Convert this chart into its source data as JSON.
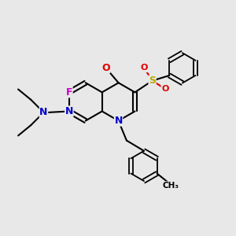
{
  "bg_color": "#e8e8e8",
  "bond_color": "#000000",
  "bond_width": 1.5,
  "atom_colors": {
    "N": "#0000cc",
    "O": "#dd0000",
    "F": "#cc00cc",
    "S": "#bbaa00",
    "C": "#000000"
  },
  "font_size": 9,
  "ring_r": 0.82
}
